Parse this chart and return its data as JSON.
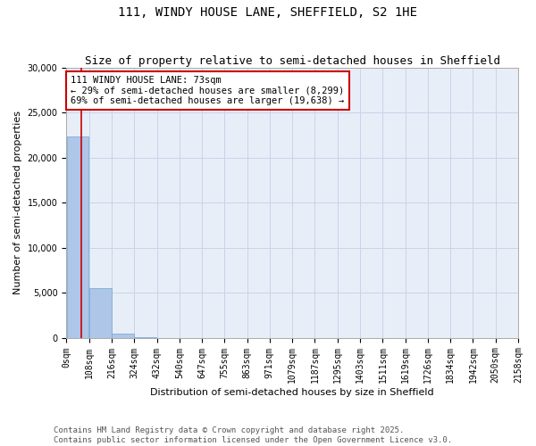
{
  "title": "111, WINDY HOUSE LANE, SHEFFIELD, S2 1HE",
  "subtitle": "Size of property relative to semi-detached houses in Sheffield",
  "xlabel": "Distribution of semi-detached houses by size in Sheffield",
  "ylabel": "Number of semi-detached properties",
  "property_size": 73,
  "property_label": "111 WINDY HOUSE LANE: 73sqm",
  "pct_smaller": 29,
  "pct_larger": 69,
  "count_smaller": 8299,
  "count_larger": 19638,
  "bar_edges": [
    0,
    108,
    216,
    324,
    432,
    540,
    647,
    755,
    863,
    971,
    1079,
    1187,
    1295,
    1403,
    1511,
    1619,
    1726,
    1834,
    1942,
    2050,
    2158
  ],
  "bar_values": [
    22300,
    5500,
    500,
    30,
    0,
    0,
    0,
    0,
    0,
    0,
    0,
    0,
    0,
    0,
    0,
    0,
    0,
    0,
    0,
    0
  ],
  "bar_color": "#aec6e8",
  "bar_edgecolor": "#7bafd4",
  "vline_color": "#cc0000",
  "annotation_box_color": "#cc0000",
  "grid_color": "#c8d4e8",
  "background_color": "#e8eef8",
  "ylim": [
    0,
    30000
  ],
  "yticks": [
    0,
    5000,
    10000,
    15000,
    20000,
    25000,
    30000
  ],
  "footer": "Contains HM Land Registry data © Crown copyright and database right 2025.\nContains public sector information licensed under the Open Government Licence v3.0.",
  "title_fontsize": 10,
  "subtitle_fontsize": 9,
  "axis_label_fontsize": 8,
  "tick_fontsize": 7,
  "annotation_fontsize": 7.5,
  "footer_fontsize": 6.5
}
